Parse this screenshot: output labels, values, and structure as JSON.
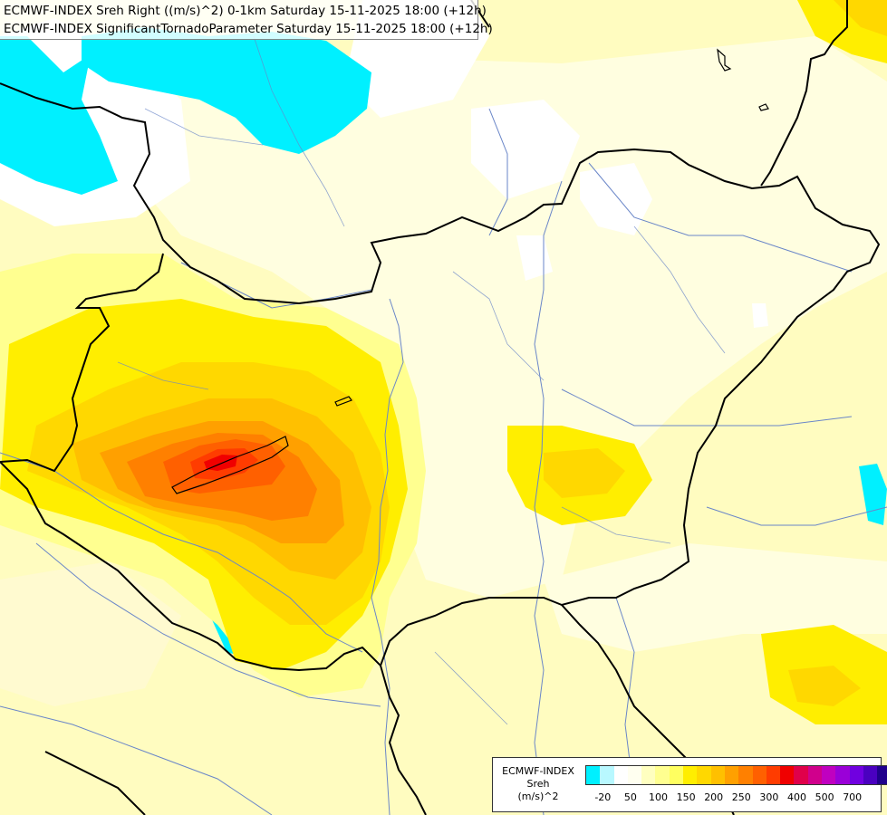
{
  "title": {
    "line1": "ECMWF-INDEX Sreh Right ((m/s)^2) 0-1km Saturday 15-11-2025 18:00 (+12h)",
    "line2": "ECMWF-INDEX SignificantTornadoParameter Saturday 15-11-2025 18:00 (+12h)"
  },
  "legend": {
    "line1": "ECMWF-INDEX",
    "line2": "Sreh",
    "line3": "(m/s)^2",
    "colors": [
      "#00f0ff",
      "#b8f8ff",
      "#ffffff",
      "#fffff0",
      "#ffffc0",
      "#ffff90",
      "#ffff60",
      "#ffee00",
      "#ffd800",
      "#ffc000",
      "#ffa000",
      "#ff8000",
      "#ff6000",
      "#ff3c00",
      "#f00000",
      "#e0004a",
      "#d0008c",
      "#c000c0",
      "#9a00d8",
      "#7000e0",
      "#4a00c0",
      "#20008c",
      "#000070"
    ],
    "tick_labels": [
      "-20",
      "50",
      "100",
      "150",
      "200",
      "250",
      "300",
      "400",
      "500",
      "700"
    ]
  },
  "icons": {
    "country-borders": "border-lines",
    "rivers": "river-lines",
    "lakes": "lake-outlines"
  }
}
